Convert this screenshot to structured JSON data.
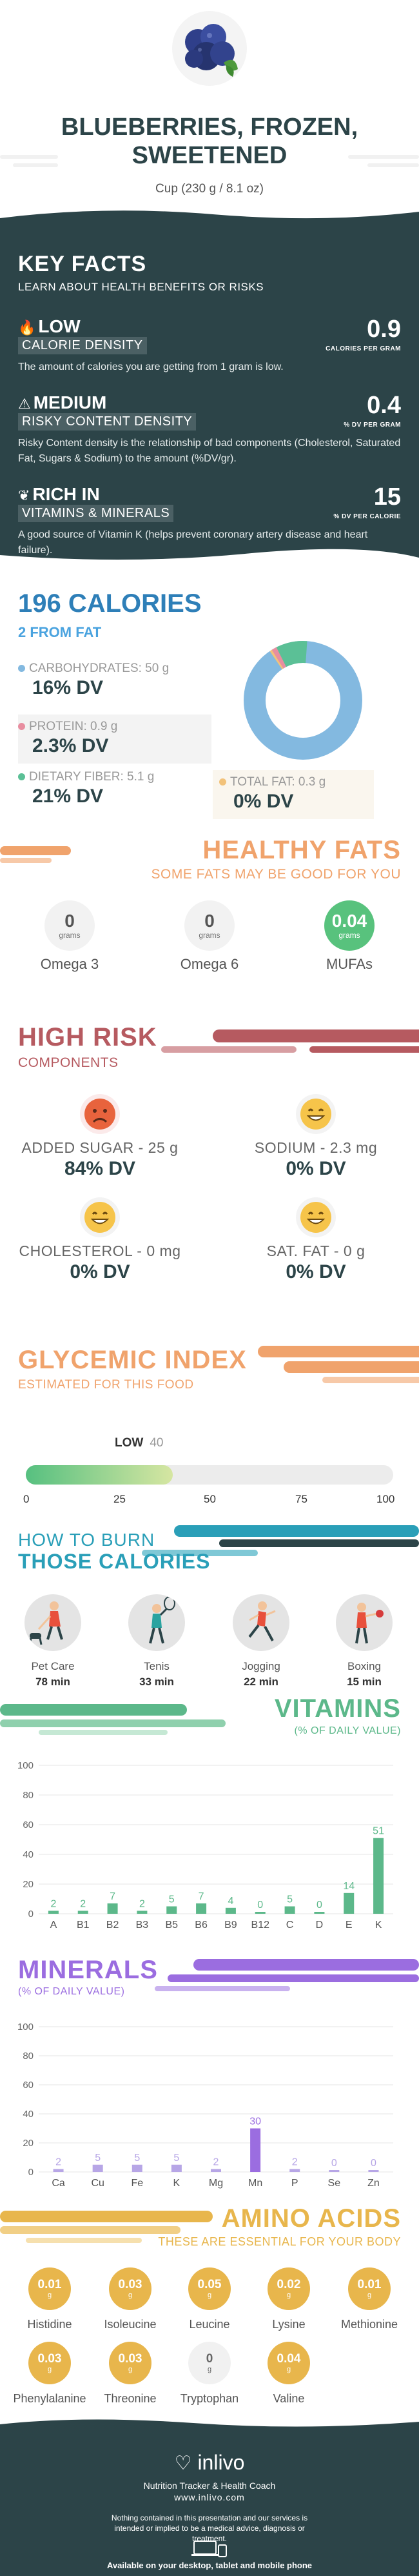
{
  "header": {
    "title_line1": "BLUEBERRIES, FROZEN,",
    "title_line2": "SWEETENED",
    "serving": "Cup (230 g / 8.1 oz)"
  },
  "key_facts": {
    "title": "KEY FACTS",
    "subtitle": "LEARN ABOUT HEALTH BENEFITS OR RISKS",
    "facts": [
      {
        "kind": "LOW",
        "label": "CALORIE DENSITY",
        "value": "0.9",
        "unit": "CALORIES PER GRAM",
        "desc": "The amount of calories you are getting from 1 gram is low.",
        "icon": "flame-icon"
      },
      {
        "kind": "MEDIUM",
        "label": "RISKY CONTENT DENSITY",
        "value": "0.4",
        "unit": "% DV PER GRAM",
        "desc": "Risky Content density is the relationship of bad components (Cholesterol, Saturated Fat, Sugars & Sodium) to the amount (%DV/gr).",
        "icon": "warning-icon"
      },
      {
        "kind": "RICH  IN",
        "label": "VITAMINS & MINERALS",
        "value": "15",
        "unit": "% DV PER CALORIE",
        "desc": "A good source of Vitamin K (helps prevent coronary artery disease and heart failure).",
        "icon": "leaf-icon"
      }
    ]
  },
  "calories": {
    "title": "196 CALORIES",
    "from_fat": "2 FROM FAT",
    "carbs_label": "CARBOHYDRATES: 50 g",
    "carbs_dv": "16% DV",
    "protein_label": "PROTEIN: 0.9 g",
    "protein_dv": "2.3% DV",
    "fiber_label": "DIETARY FIBER: 5.1 g",
    "fiber_dv": "21% DV",
    "fat_label": "TOTAL FAT: 0.3 g",
    "fat_dv": "0% DV",
    "colors": {
      "carbs": "#83b9e0",
      "protein": "#e88ea0",
      "fiber": "#5bc096",
      "fat": "#f2c27a"
    }
  },
  "healthy_fats": {
    "title": "HEALTHY FATS",
    "subtitle": "SOME FATS MAY BE GOOD FOR YOU",
    "unit": "grams",
    "items": [
      {
        "name": "Omega 3",
        "value": "0"
      },
      {
        "name": "Omega 6",
        "value": "0"
      },
      {
        "name": "MUFAs",
        "value": "0.04"
      }
    ]
  },
  "high_risk": {
    "title": "HIGH RISK",
    "subtitle": "COMPONENTS",
    "items": [
      {
        "name": "ADDED SUGAR - 25 g",
        "dv": "84% DV",
        "mood": "sad"
      },
      {
        "name": "SODIUM - 2.3 mg",
        "dv": "0% DV",
        "mood": "happy"
      },
      {
        "name": "CHOLESTEROL - 0 mg",
        "dv": "0% DV",
        "mood": "happy"
      },
      {
        "name": "SAT. FAT - 0 g",
        "dv": "0% DV",
        "mood": "happy"
      }
    ]
  },
  "glycemic": {
    "title": "GLYCEMIC INDEX",
    "subtitle": "ESTIMATED FOR THIS FOOD",
    "level": "LOW",
    "value": "40",
    "value_num": 40,
    "ticks": [
      "0",
      "25",
      "50",
      "75",
      "100"
    ]
  },
  "burn": {
    "title_line1": "HOW TO BURN",
    "title_line2": "THOSE CALORIES",
    "items": [
      {
        "name": "Pet Care",
        "time": "78 min"
      },
      {
        "name": "Tenis",
        "time": "33 min"
      },
      {
        "name": "Jogging",
        "time": "22 min"
      },
      {
        "name": "Boxing",
        "time": "15 min"
      }
    ]
  },
  "vitamins": {
    "title": "VITAMINS",
    "subtitle": "(% OF DAILY VALUE)"
  },
  "minerals": {
    "title": "MINERALS",
    "subtitle": "(% OF DAILY VALUE)"
  },
  "chart_data": [
    {
      "type": "bar",
      "title": "VITAMINS",
      "subtitle": "(% OF DAILY VALUE)",
      "categories": [
        "A",
        "B1",
        "B2",
        "B3",
        "B5",
        "B6",
        "B9",
        "B12",
        "C",
        "D",
        "E",
        "K"
      ],
      "values": [
        2,
        2,
        7,
        2,
        5,
        7,
        4,
        0,
        5,
        0,
        14,
        51
      ],
      "ylim": [
        0,
        100
      ],
      "yticks": [
        0,
        20,
        40,
        60,
        80,
        100
      ],
      "grid": true,
      "bar_color": "#5cb88a",
      "highlight_color": "#5cb88a"
    },
    {
      "type": "bar",
      "title": "MINERALS",
      "subtitle": "(% OF DAILY VALUE)",
      "categories": [
        "Ca",
        "Cu",
        "Fe",
        "K",
        "Mg",
        "Mn",
        "P",
        "Se",
        "Zn"
      ],
      "values": [
        2,
        5,
        5,
        5,
        2,
        30,
        2,
        0,
        0
      ],
      "ylim": [
        0,
        100
      ],
      "yticks": [
        0,
        20,
        40,
        60,
        80,
        100
      ],
      "grid": true,
      "bar_color": "#b7a6e6",
      "highlight_color": "#9b6de0"
    }
  ],
  "amino": {
    "title": "AMINO ACIDS",
    "subtitle": "THESE ARE ESSENTIAL FOR YOUR BODY",
    "unit": "g",
    "items": [
      {
        "name": "Histidine",
        "value": "0.01"
      },
      {
        "name": "Isoleucine",
        "value": "0.03"
      },
      {
        "name": "Leucine",
        "value": "0.05"
      },
      {
        "name": "Lysine",
        "value": "0.02"
      },
      {
        "name": "Methionine",
        "value": "0.01"
      },
      {
        "name": "Phenylalanine",
        "value": "0.03"
      },
      {
        "name": "Threonine",
        "value": "0.03"
      },
      {
        "name": "Tryptophan",
        "value": "0"
      },
      {
        "name": "Valine",
        "value": "0.04"
      }
    ]
  },
  "footer": {
    "brand": "inlivo",
    "tagline": "Nutrition Tracker & Health Coach",
    "site": "www.inlivo.com",
    "disclaimer": "Nothing contained in this presentation and our services is intended or implied to be a medical advice, diagnosis or treatment.",
    "available": "Available on your desktop, tablet and mobile phone"
  },
  "colors": {
    "dark": "#2c4448",
    "blue": "#2e7fb8",
    "orange": "#f0a36c",
    "red": "#b65a60",
    "green": "#5cb88a",
    "purple": "#9b6de0",
    "gold": "#e8b64c"
  }
}
